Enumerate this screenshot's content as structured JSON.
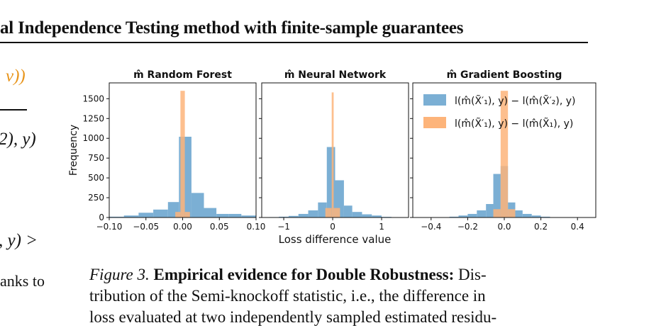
{
  "header": {
    "title": "al Independence Testing method with finite-sample guarantees"
  },
  "left_fragments": {
    "frag1": "ν))",
    "frag2": "2), y)",
    "frag3": ", y) >",
    "frag4": "anks to"
  },
  "figure": {
    "xlabel": "Loss difference value",
    "ylabel": "Frequency",
    "legend": [
      {
        "label": "l(m̂(X̃′₁), y) − l(m̂(X̃′₂), y)",
        "color": "#7bafd4"
      },
      {
        "label": "l(m̂(X̃′₁), y) − l(m̂(X̃₁), y)",
        "color": "#fdb47a"
      }
    ],
    "panels": [
      {
        "title": "m̂ Random Forest",
        "xticks": [
          "−0.10",
          "−0.05",
          "0.00",
          "0.05",
          "0.10"
        ],
        "yticks": [
          "0",
          "250",
          "500",
          "750",
          "1000",
          "1250",
          "1500"
        ]
      },
      {
        "title": "m̂ Neural Network",
        "xticks": [
          "−1",
          "0",
          "1"
        ]
      },
      {
        "title": "m̂ Gradient Boosting",
        "xticks": [
          "−0.4",
          "−0.2",
          "0.0",
          "0.2",
          "0.4"
        ]
      }
    ]
  },
  "chart_data": [
    {
      "type": "bar",
      "title": "m̂ Random Forest",
      "xlabel": "Loss difference value",
      "ylabel": "Frequency",
      "xlim": [
        -0.1,
        0.1
      ],
      "ylim": [
        0,
        1700
      ],
      "series": [
        {
          "name": "l(m̂(X̃′₁), y) − l(m̂(X̃′₂), y)",
          "color": "#7bafd4",
          "bins": [
            [
              -0.1,
              -0.08,
              10
            ],
            [
              -0.08,
              -0.06,
              25
            ],
            [
              -0.06,
              -0.04,
              60
            ],
            [
              -0.04,
              -0.02,
              100
            ],
            [
              -0.02,
              -0.005,
              195
            ],
            [
              -0.005,
              0.012,
              1020
            ],
            [
              0.012,
              0.029,
              310
            ],
            [
              0.029,
              0.046,
              120
            ],
            [
              0.046,
              0.063,
              45
            ],
            [
              0.063,
              0.08,
              45
            ],
            [
              0.08,
              0.1,
              25
            ]
          ]
        },
        {
          "name": "l(m̂(X̃′₁), y) − l(m̂(X̃₁), y)",
          "color": "#fdb47a",
          "bins": [
            [
              -0.01,
              -0.003,
              70
            ],
            [
              -0.003,
              0.003,
              1600
            ],
            [
              0.003,
              0.01,
              70
            ]
          ]
        }
      ]
    },
    {
      "type": "bar",
      "title": "m̂ Neural Network",
      "xlabel": "Loss difference value",
      "xlim": [
        -1.45,
        1.55
      ],
      "ylim": [
        0,
        1700
      ],
      "series": [
        {
          "name": "l(m̂(X̃′₁), y) − l(m̂(X̃′₂), y)",
          "color": "#7bafd4",
          "bins": [
            [
              -1.3,
              -1.1,
              5
            ],
            [
              -1.1,
              -0.9,
              10
            ],
            [
              -0.9,
              -0.7,
              20
            ],
            [
              -0.7,
              -0.5,
              45
            ],
            [
              -0.5,
              -0.3,
              90
            ],
            [
              -0.3,
              -0.12,
              190
            ],
            [
              -0.12,
              0.05,
              890
            ],
            [
              0.05,
              0.23,
              470
            ],
            [
              0.23,
              0.4,
              150
            ],
            [
              0.4,
              0.6,
              70
            ],
            [
              0.6,
              0.8,
              40
            ],
            [
              0.8,
              1.0,
              25
            ],
            [
              1.0,
              1.2,
              8
            ]
          ]
        },
        {
          "name": "l(m̂(X̃′₁), y) − l(m̂(X̃₁), y)",
          "color": "#fdb47a",
          "bins": [
            [
              -0.15,
              -0.02,
              120
            ],
            [
              -0.02,
              0.02,
              1580
            ],
            [
              0.02,
              0.15,
              120
            ]
          ]
        }
      ]
    },
    {
      "type": "bar",
      "title": "m̂ Gradient Boosting",
      "xlabel": "Loss difference value",
      "xlim": [
        -0.5,
        0.5
      ],
      "ylim": [
        0,
        1700
      ],
      "series": [
        {
          "name": "l(m̂(X̃′₁), y) − l(m̂(X̃′₂), y)",
          "color": "#7bafd4",
          "bins": [
            [
              -0.3,
              -0.25,
              10
            ],
            [
              -0.25,
              -0.2,
              25
            ],
            [
              -0.2,
              -0.15,
              45
            ],
            [
              -0.15,
              -0.1,
              90
            ],
            [
              -0.1,
              -0.06,
              170
            ],
            [
              -0.06,
              -0.02,
              550
            ],
            [
              -0.02,
              0.02,
              650
            ],
            [
              0.02,
              0.06,
              190
            ],
            [
              0.06,
              0.1,
              90
            ],
            [
              0.1,
              0.15,
              45
            ],
            [
              0.15,
              0.2,
              25
            ],
            [
              0.2,
              0.25,
              10
            ]
          ]
        },
        {
          "name": "l(m̂(X̃′₁), y) − l(m̂(X̃₁), y)",
          "color": "#fdb47a",
          "bins": [
            [
              -0.06,
              -0.02,
              105
            ],
            [
              -0.02,
              0.02,
              1600
            ],
            [
              0.02,
              0.06,
              105
            ]
          ]
        }
      ]
    }
  ],
  "caption": {
    "label": "Figure 3.",
    "bold": "Empirical evidence for Double Robustness:",
    "line1_rest": "Dis-",
    "line2": "tribution of the Semi-knockoff statistic, i.e., the difference in",
    "line3": "loss evaluated at two independently sampled estimated residu-"
  }
}
